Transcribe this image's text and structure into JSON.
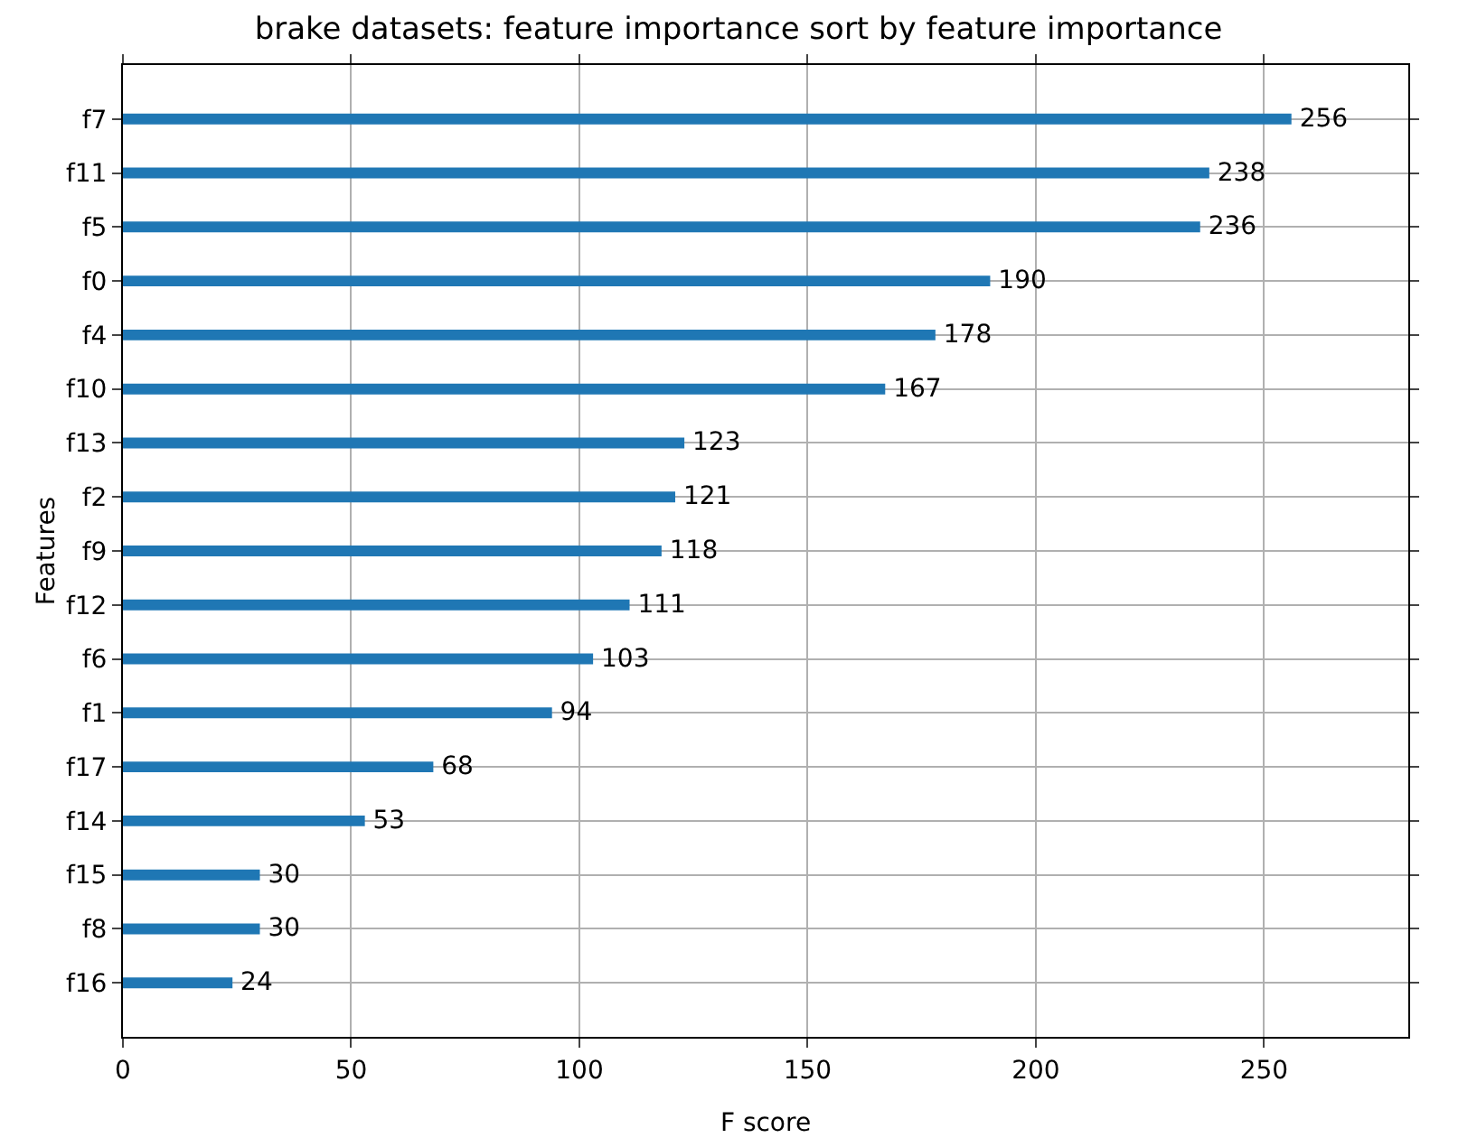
{
  "chart_data": {
    "type": "bar",
    "orientation": "horizontal",
    "title": "brake datasets: feature importance sort by feature importance",
    "xlabel": "F score",
    "ylabel": "Features",
    "categories": [
      "f7",
      "f11",
      "f5",
      "f0",
      "f4",
      "f10",
      "f13",
      "f2",
      "f9",
      "f12",
      "f6",
      "f1",
      "f17",
      "f14",
      "f15",
      "f8",
      "f16"
    ],
    "values": [
      256,
      238,
      236,
      190,
      178,
      167,
      123,
      121,
      118,
      111,
      103,
      94,
      68,
      53,
      30,
      30,
      24
    ],
    "color": "#1f77b4",
    "xlim": [
      0,
      281.6
    ],
    "xticks": [
      0,
      50,
      100,
      150,
      200,
      250
    ],
    "grid": true,
    "data_labels": true
  }
}
